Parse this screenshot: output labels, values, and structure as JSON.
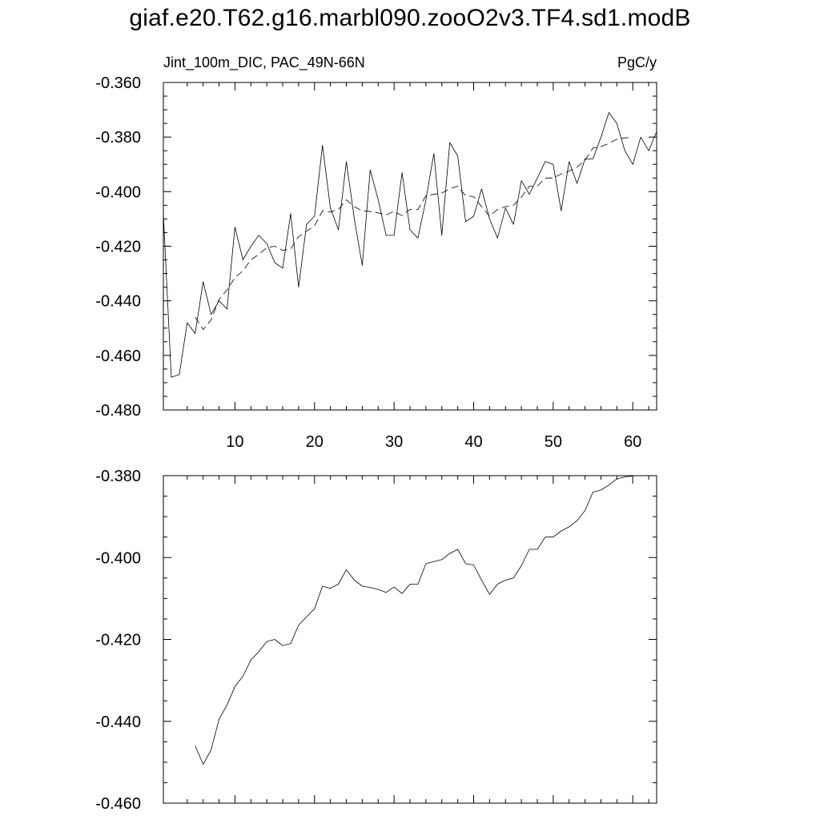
{
  "page_title": "giaf.e20.T62.g16.marbl090.zooO2v3.TF4.sd1.modB",
  "chart_data": [
    {
      "type": "line",
      "left_label": "Jint_100m_DIC, PAC_49N-66N",
      "right_label": "PgC/y",
      "xlim": [
        1,
        63
      ],
      "ylim": [
        -0.48,
        -0.36
      ],
      "xticks": [
        10,
        20,
        30,
        40,
        50,
        60
      ],
      "xtick_labels": [
        "10",
        "20",
        "30",
        "40",
        "50",
        "60"
      ],
      "yticks": [
        -0.36,
        -0.38,
        -0.4,
        -0.42,
        -0.44,
        -0.46,
        -0.48
      ],
      "ytick_labels": [
        "-0.360",
        "-0.380",
        "-0.400",
        "-0.420",
        "-0.440",
        "-0.460",
        "-0.480"
      ],
      "grid": false,
      "series": [
        {
          "style": "solid",
          "x": [
            1,
            2,
            3,
            4,
            5,
            6,
            7,
            8,
            9,
            10,
            11,
            12,
            13,
            14,
            15,
            16,
            17,
            18,
            19,
            20,
            21,
            22,
            23,
            24,
            25,
            26,
            27,
            28,
            29,
            30,
            31,
            32,
            33,
            34,
            35,
            36,
            37,
            38,
            39,
            40,
            41,
            42,
            43,
            44,
            45,
            46,
            47,
            48,
            49,
            50,
            51,
            52,
            53,
            54,
            55,
            56,
            57,
            58,
            59,
            60,
            61,
            62,
            63
          ],
          "y": [
            -0.408,
            -0.468,
            -0.467,
            -0.448,
            -0.452,
            -0.433,
            -0.445,
            -0.44,
            -0.443,
            -0.413,
            -0.425,
            -0.42,
            -0.416,
            -0.419,
            -0.426,
            -0.428,
            -0.408,
            -0.435,
            -0.412,
            -0.409,
            -0.383,
            -0.406,
            -0.414,
            -0.389,
            -0.41,
            -0.427,
            -0.392,
            -0.403,
            -0.416,
            -0.416,
            -0.393,
            -0.414,
            -0.417,
            -0.403,
            -0.386,
            -0.416,
            -0.382,
            -0.387,
            -0.411,
            -0.409,
            -0.399,
            -0.41,
            -0.417,
            -0.406,
            -0.412,
            -0.396,
            -0.401,
            -0.395,
            -0.389,
            -0.39,
            -0.407,
            -0.389,
            -0.397,
            -0.388,
            -0.388,
            -0.38,
            -0.371,
            -0.375,
            -0.385,
            -0.39,
            -0.38,
            -0.385,
            -0.378
          ]
        },
        {
          "style": "dashed",
          "x": [
            5,
            6,
            7,
            8,
            9,
            10,
            11,
            12,
            13,
            14,
            15,
            16,
            17,
            18,
            19,
            20,
            21,
            22,
            23,
            24,
            25,
            26,
            27,
            28,
            29,
            30,
            31,
            32,
            33,
            34,
            35,
            36,
            37,
            38,
            39,
            40,
            41,
            42,
            43,
            44,
            45,
            46,
            47,
            48,
            49,
            50,
            51,
            52,
            53,
            54,
            55,
            56,
            57,
            58,
            59,
            60
          ],
          "y": [
            -0.446,
            -0.4505,
            -0.447,
            -0.4395,
            -0.436,
            -0.4315,
            -0.429,
            -0.425,
            -0.423,
            -0.4205,
            -0.42,
            -0.4215,
            -0.421,
            -0.4165,
            -0.4145,
            -0.4125,
            -0.407,
            -0.4075,
            -0.4065,
            -0.403,
            -0.4055,
            -0.407,
            -0.4073,
            -0.4078,
            -0.4085,
            -0.4072,
            -0.4088,
            -0.4065,
            -0.4065,
            -0.4015,
            -0.401,
            -0.4005,
            -0.399,
            -0.398,
            -0.4015,
            -0.4018,
            -0.4055,
            -0.409,
            -0.4065,
            -0.4055,
            -0.405,
            -0.402,
            -0.398,
            -0.398,
            -0.395,
            -0.395,
            -0.3935,
            -0.3925,
            -0.391,
            -0.3885,
            -0.384,
            -0.3835,
            -0.3823,
            -0.3808,
            -0.3803,
            -0.3801
          ]
        }
      ]
    },
    {
      "type": "line",
      "xlim": [
        1,
        63
      ],
      "ylim": [
        -0.46,
        -0.38
      ],
      "xticks": [
        10,
        20,
        30,
        40,
        50,
        60
      ],
      "yticks": [
        -0.38,
        -0.4,
        -0.42,
        -0.44,
        -0.46
      ],
      "ytick_labels": [
        "-0.380",
        "-0.400",
        "-0.420",
        "-0.440",
        "-0.460"
      ],
      "grid": false,
      "series": [
        {
          "style": "solid",
          "x": [
            5,
            6,
            7,
            8,
            9,
            10,
            11,
            12,
            13,
            14,
            15,
            16,
            17,
            18,
            19,
            20,
            21,
            22,
            23,
            24,
            25,
            26,
            27,
            28,
            29,
            30,
            31,
            32,
            33,
            34,
            35,
            36,
            37,
            38,
            39,
            40,
            41,
            42,
            43,
            44,
            45,
            46,
            47,
            48,
            49,
            50,
            51,
            52,
            53,
            54,
            55,
            56,
            57,
            58,
            59,
            60
          ],
          "y": [
            -0.446,
            -0.4505,
            -0.447,
            -0.4395,
            -0.436,
            -0.4315,
            -0.429,
            -0.425,
            -0.423,
            -0.4205,
            -0.42,
            -0.4215,
            -0.421,
            -0.4165,
            -0.4145,
            -0.4125,
            -0.407,
            -0.4075,
            -0.4065,
            -0.403,
            -0.4055,
            -0.407,
            -0.4073,
            -0.4078,
            -0.4085,
            -0.4072,
            -0.4088,
            -0.4065,
            -0.4065,
            -0.4015,
            -0.401,
            -0.4005,
            -0.399,
            -0.398,
            -0.4015,
            -0.4018,
            -0.4055,
            -0.409,
            -0.4065,
            -0.4055,
            -0.405,
            -0.402,
            -0.398,
            -0.398,
            -0.395,
            -0.395,
            -0.3935,
            -0.3925,
            -0.391,
            -0.3885,
            -0.384,
            -0.3835,
            -0.3823,
            -0.3808,
            -0.3803,
            -0.3801
          ]
        }
      ]
    }
  ]
}
